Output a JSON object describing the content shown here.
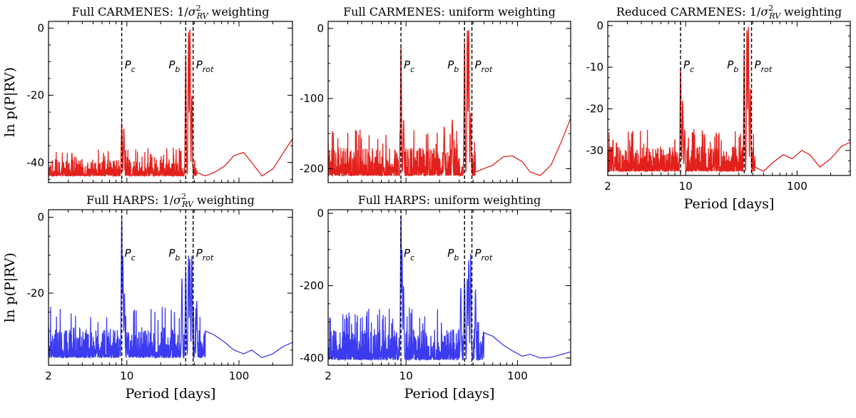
{
  "colors": {
    "carmenes": "#e3211c",
    "harps": "#3b3bf0",
    "marker": "#000000"
  },
  "chart_data": [
    {
      "type": "line",
      "id": "p1",
      "title": "Full CARMENES: 1/σ²RV weighting",
      "title_main": "Full CARMENES: 1/",
      "title_sigma": "σ",
      "title_sup": "2",
      "title_sub": "RV",
      "title_tail": " weighting",
      "xlabel": "",
      "ylabel": "ln p(P|RV)",
      "xscale": "log",
      "xlim": [
        2,
        300
      ],
      "ylim": [
        -46,
        2
      ],
      "yticks": [
        0,
        -20,
        -40
      ],
      "xticks": [
        2,
        10,
        100
      ],
      "xtick_labels": [
        "",
        "",
        ""
      ],
      "color_key": "carmenes",
      "markers": [
        {
          "x": 9.0,
          "label": "P",
          "sub": "c"
        },
        {
          "x": 33.5,
          "label": "P",
          "sub": "b"
        },
        {
          "x": 39.0,
          "label": "P",
          "sub": "rot"
        }
      ],
      "peaks": [
        [
          9.0,
          -28
        ],
        [
          9.4,
          -30
        ],
        [
          33.5,
          -8
        ],
        [
          35.5,
          -1
        ],
        [
          36.5,
          0
        ],
        [
          38.0,
          -20
        ]
      ],
      "baseline": [
        -44,
        -39
      ],
      "tail": [
        [
          42,
          -43
        ],
        [
          50,
          -44
        ],
        [
          60,
          -43
        ],
        [
          75,
          -41
        ],
        [
          90,
          -38
        ],
        [
          110,
          -37
        ],
        [
          130,
          -40
        ],
        [
          160,
          -44
        ],
        [
          200,
          -42
        ],
        [
          250,
          -37
        ],
        [
          300,
          -33
        ]
      ]
    },
    {
      "type": "line",
      "id": "p2",
      "title": "Full CARMENES: uniform weighting",
      "xlabel": "",
      "ylabel": "",
      "xscale": "log",
      "xlim": [
        2,
        300
      ],
      "ylim": [
        -220,
        10
      ],
      "yticks": [
        0,
        -100,
        -200
      ],
      "xticks": [
        2,
        10,
        100
      ],
      "xtick_labels": [
        "",
        "",
        ""
      ],
      "color_key": "carmenes",
      "markers": [
        {
          "x": 9.0,
          "label": "P",
          "sub": "c"
        },
        {
          "x": 33.5,
          "label": "P",
          "sub": "b"
        },
        {
          "x": 39.0,
          "label": "P",
          "sub": "rot"
        }
      ],
      "peaks": [
        [
          9.0,
          -25
        ],
        [
          9.5,
          -130
        ],
        [
          33.5,
          -20
        ],
        [
          35.5,
          -2
        ],
        [
          36.5,
          0
        ],
        [
          38.0,
          -120
        ],
        [
          26,
          -130
        ],
        [
          22,
          -140
        ]
      ],
      "baseline": [
        -210,
        -170
      ],
      "tail": [
        [
          42,
          -205
        ],
        [
          50,
          -200
        ],
        [
          60,
          -195
        ],
        [
          75,
          -183
        ],
        [
          90,
          -182
        ],
        [
          110,
          -190
        ],
        [
          130,
          -205
        ],
        [
          160,
          -210
        ],
        [
          200,
          -195
        ],
        [
          250,
          -160
        ],
        [
          300,
          -128
        ]
      ]
    },
    {
      "type": "line",
      "id": "p3",
      "title": "Reduced CARMENES: 1/σ²RV weighting",
      "title_main": "Reduced CARMENES: 1/",
      "title_sigma": "σ",
      "title_sup": "2",
      "title_sub": "RV",
      "title_tail": " weighting",
      "xlabel": "Period [days]",
      "ylabel": "",
      "xscale": "log",
      "xlim": [
        2,
        300
      ],
      "ylim": [
        -36,
        1
      ],
      "yticks": [
        0,
        -10,
        -20,
        -30
      ],
      "xticks": [
        2,
        10,
        100
      ],
      "xtick_labels": [
        "2",
        "10",
        "100"
      ],
      "color_key": "carmenes",
      "markers": [
        {
          "x": 9.0,
          "label": "P",
          "sub": "c"
        },
        {
          "x": 33.5,
          "label": "P",
          "sub": "b"
        },
        {
          "x": 39.0,
          "label": "P",
          "sub": "rot"
        }
      ],
      "peaks": [
        [
          9.0,
          -10
        ],
        [
          9.4,
          -18
        ],
        [
          9.8,
          -25
        ],
        [
          33.5,
          -6
        ],
        [
          35.5,
          -1
        ],
        [
          36.5,
          0
        ],
        [
          38.0,
          -15
        ]
      ],
      "baseline": [
        -35,
        -29
      ],
      "tail": [
        [
          42,
          -34
        ],
        [
          50,
          -35
        ],
        [
          60,
          -33
        ],
        [
          75,
          -31
        ],
        [
          90,
          -32
        ],
        [
          110,
          -30
        ],
        [
          130,
          -31
        ],
        [
          160,
          -34
        ],
        [
          200,
          -32
        ],
        [
          250,
          -29
        ],
        [
          300,
          -28
        ]
      ]
    },
    {
      "type": "line",
      "id": "p4",
      "title": "Full HARPS: 1/σ²RV weighting",
      "title_main": "Full HARPS: 1/",
      "title_sigma": "σ",
      "title_sup": "2",
      "title_sub": "RV",
      "title_tail": " weighting",
      "xlabel": "Period [days]",
      "ylabel": "ln p(P|RV)",
      "xscale": "log",
      "xlim": [
        2,
        300
      ],
      "ylim": [
        -39,
        2
      ],
      "yticks": [
        0,
        -20
      ],
      "xticks": [
        2,
        10,
        100
      ],
      "xtick_labels": [
        "2",
        "10",
        "100"
      ],
      "color_key": "harps",
      "markers": [
        {
          "x": 9.0,
          "label": "P",
          "sub": "c"
        },
        {
          "x": 33.5,
          "label": "P",
          "sub": "b"
        },
        {
          "x": 39.0,
          "label": "P",
          "sub": "rot"
        }
      ],
      "peaks": [
        [
          9.0,
          0
        ],
        [
          9.2,
          -10
        ],
        [
          9.5,
          -20
        ],
        [
          31,
          -16
        ],
        [
          33.5,
          -14
        ],
        [
          35.5,
          -10
        ],
        [
          36.5,
          -11
        ],
        [
          38.0,
          -10
        ],
        [
          42,
          -22
        ]
      ],
      "baseline": [
        -37,
        -29
      ],
      "tail": [
        [
          50,
          -30
        ],
        [
          60,
          -31
        ],
        [
          75,
          -33
        ],
        [
          90,
          -35
        ],
        [
          110,
          -36
        ],
        [
          130,
          -35
        ],
        [
          160,
          -37
        ],
        [
          200,
          -36
        ],
        [
          250,
          -34
        ],
        [
          300,
          -33
        ]
      ]
    },
    {
      "type": "line",
      "id": "p5",
      "title": "Full HARPS: uniform weighting",
      "xlabel": "Period [days]",
      "ylabel": "",
      "xscale": "log",
      "xlim": [
        2,
        300
      ],
      "ylim": [
        -420,
        10
      ],
      "yticks": [
        0,
        -200,
        -400
      ],
      "xticks": [
        2,
        10,
        100
      ],
      "xtick_labels": [
        "2",
        "10",
        "100"
      ],
      "color_key": "harps",
      "markers": [
        {
          "x": 9.0,
          "label": "P",
          "sub": "c"
        },
        {
          "x": 33.5,
          "label": "P",
          "sub": "b"
        },
        {
          "x": 39.0,
          "label": "P",
          "sub": "rot"
        }
      ],
      "peaks": [
        [
          9.0,
          0
        ],
        [
          9.2,
          -100
        ],
        [
          9.5,
          -200
        ],
        [
          31,
          -205
        ],
        [
          33.5,
          -180
        ],
        [
          35.5,
          -180
        ],
        [
          36.5,
          -130
        ],
        [
          38.0,
          -110
        ],
        [
          42,
          -210
        ]
      ],
      "baseline": [
        -405,
        -320
      ],
      "tail": [
        [
          50,
          -330
        ],
        [
          60,
          -340
        ],
        [
          75,
          -365
        ],
        [
          90,
          -380
        ],
        [
          110,
          -395
        ],
        [
          130,
          -390
        ],
        [
          160,
          -400
        ],
        [
          200,
          -398
        ],
        [
          250,
          -390
        ],
        [
          300,
          -383
        ]
      ]
    }
  ]
}
